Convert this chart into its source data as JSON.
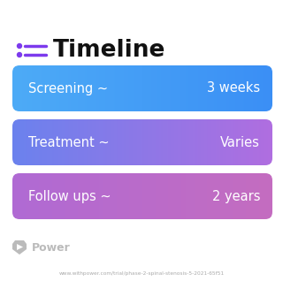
{
  "title": "Timeline",
  "background_color": "#ffffff",
  "title_color": "#111111",
  "title_fontsize": 19,
  "title_fontweight": "bold",
  "icon_color": "#7c3aed",
  "rows": [
    {
      "label": "Screening ~",
      "value": "3 weeks",
      "color_left": "#4dabf7",
      "color_right": "#3b8ff5"
    },
    {
      "label": "Treatment ~",
      "value": "Varies",
      "color_left": "#6b82ee",
      "color_right": "#b06ee0"
    },
    {
      "label": "Follow ups ~",
      "value": "2 years",
      "color_left": "#b06ad4",
      "color_right": "#c46dc0"
    }
  ],
  "watermark_text": "Power",
  "watermark_color": "#bbbbbb",
  "url_text": "www.withpower.com/trial/phase-2-spinal-stenosis-5-2021-65f51",
  "url_color": "#aaaaaa",
  "text_color": "#ffffff",
  "text_fontsize": 10.5,
  "figsize": [
    3.2,
    3.27
  ],
  "dpi": 100
}
